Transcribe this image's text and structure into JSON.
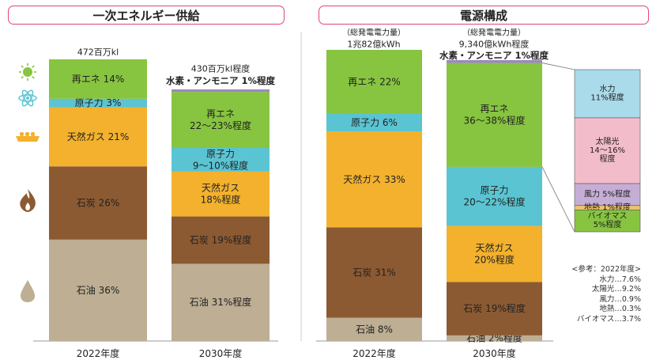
{
  "left_title": "一次エネルギー供給",
  "right_title": "電源構成",
  "chart_data": [
    {
      "type": "bar",
      "stacked": true,
      "title": "一次エネルギー供給",
      "categories": [
        "2022年度",
        "2030年度"
      ],
      "unit": "%",
      "totals": [
        "472百万kl",
        "430百万kl程度"
      ],
      "extra_label": "水素・アンモニア 1%程度",
      "series": [
        {
          "name": "石油",
          "color": "#bdae94",
          "values": [
            36,
            31
          ],
          "labels": [
            "石油 36%",
            "石油 31%程度"
          ]
        },
        {
          "name": "石炭",
          "color": "#8c5a32",
          "values": [
            26,
            19
          ],
          "labels": [
            "石炭 26%",
            "石炭 19%程度"
          ]
        },
        {
          "name": "天然ガス",
          "color": "#f3b12d",
          "values": [
            21,
            18
          ],
          "labels": [
            "天然ガス 21%",
            "天然ガス\n18%程度"
          ]
        },
        {
          "name": "原子力",
          "color": "#5bc4d3",
          "values": [
            3,
            9.5
          ],
          "labels": [
            "原子力 3%",
            "原子力\n9～10%程度"
          ]
        },
        {
          "name": "再エネ",
          "color": "#87c440",
          "values": [
            14,
            22.5
          ],
          "labels": [
            "再エネ 14%",
            "再エネ\n22～23%程度"
          ]
        },
        {
          "name": "水素・アンモニア",
          "color": "#9b88c0",
          "values": [
            0,
            1
          ],
          "labels": [
            "",
            ""
          ]
        }
      ]
    },
    {
      "type": "bar",
      "stacked": true,
      "title": "電源構成",
      "categories": [
        "2022年度",
        "2030年度"
      ],
      "unit": "%",
      "totals_caption": [
        "（総発電電力量）",
        "（総発電電力量）"
      ],
      "totals": [
        "1兆82億kWh",
        "9,340億kWh程度"
      ],
      "extra_label": "水素・アンモニア 1%程度",
      "series": [
        {
          "name": "石油",
          "color": "#bdae94",
          "values": [
            8,
            2
          ],
          "labels": [
            "石油 8%",
            "石油 2%程度"
          ]
        },
        {
          "name": "石炭",
          "color": "#8c5a32",
          "values": [
            31,
            19
          ],
          "labels": [
            "石炭 31%",
            "石炭 19%程度"
          ]
        },
        {
          "name": "天然ガス",
          "color": "#f3b12d",
          "values": [
            33,
            20
          ],
          "labels": [
            "天然ガス 33%",
            "天然ガス\n20%程度"
          ]
        },
        {
          "name": "原子力",
          "color": "#5bc4d3",
          "values": [
            6,
            21
          ],
          "labels": [
            "原子力 6%",
            "原子力\n20～22%程度"
          ]
        },
        {
          "name": "再エネ",
          "color": "#87c440",
          "values": [
            22,
            37
          ],
          "labels": [
            "再エネ 22%",
            "再エネ\n36～38%程度"
          ]
        },
        {
          "name": "水素・アンモニア",
          "color": "#9b88c0",
          "values": [
            0,
            1
          ],
          "labels": [
            "",
            ""
          ]
        }
      ],
      "breakdown": [
        {
          "name": "水力",
          "color": "#a9dbea",
          "value": 11,
          "label": "水力\n11%程度"
        },
        {
          "name": "太陽光",
          "color": "#f3bccb",
          "value": 15,
          "label": "太陽光\n14～16%\n程度"
        },
        {
          "name": "風力",
          "color": "#c5aed6",
          "value": 5,
          "label": "風力 5%程度"
        },
        {
          "name": "地熱",
          "color": "#f0c26b",
          "value": 1,
          "label": "地熱 1%程度"
        },
        {
          "name": "バイオマス",
          "color": "#87c440",
          "value": 5,
          "label": "バイオマス\n5%程度"
        }
      ]
    }
  ],
  "reference_note": {
    "title": "<参考：2022年度>",
    "items": [
      "水力…7.6%",
      "太陽光…9.2%",
      "風力…0.9%",
      "地熱…0.3%",
      "バイオマス…3.7%"
    ]
  },
  "icons": [
    "sun-icon",
    "atom-icon",
    "lng-ship-icon",
    "flame-icon",
    "oil-drop-icon"
  ]
}
